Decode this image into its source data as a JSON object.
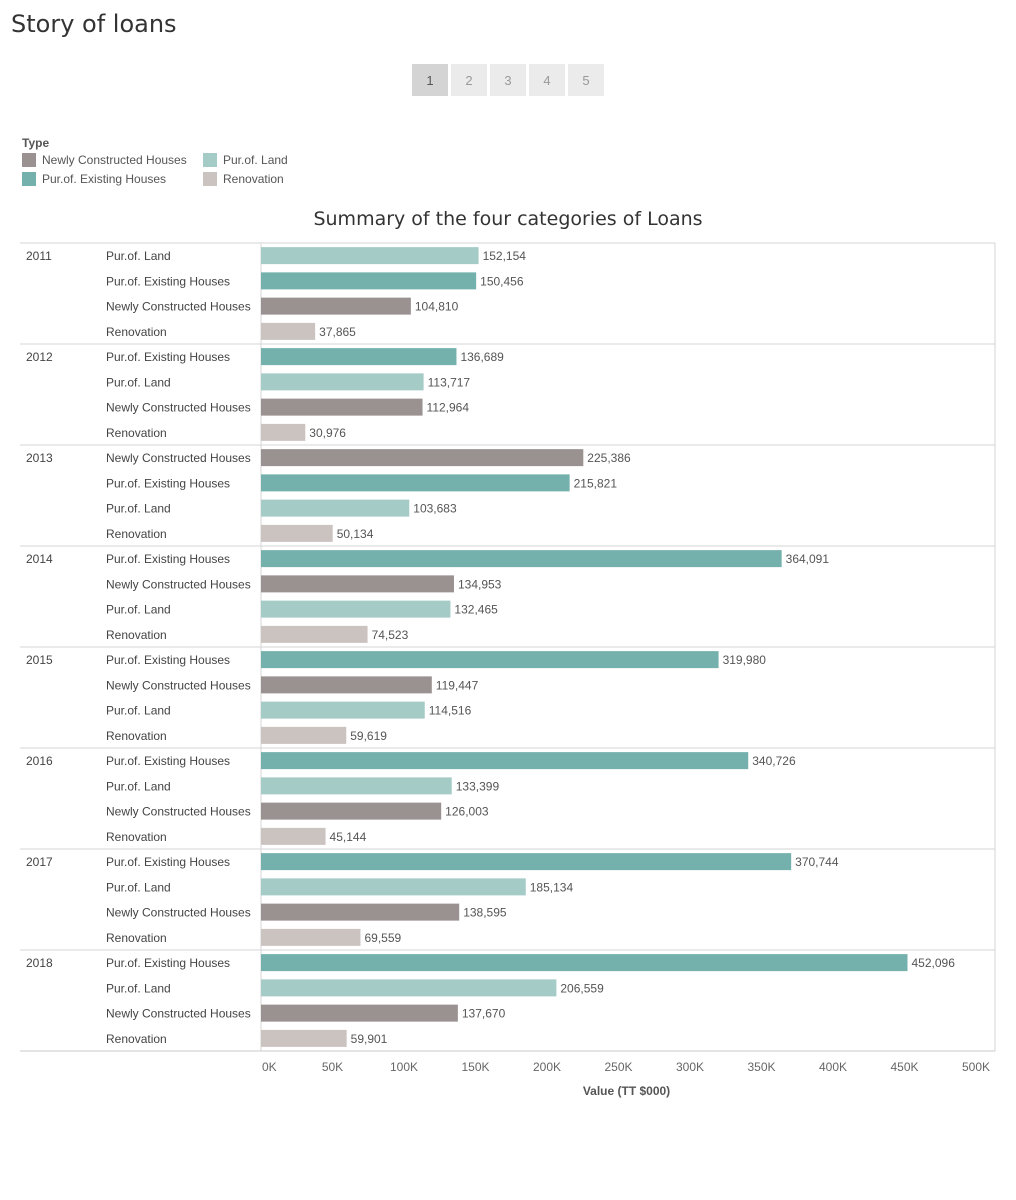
{
  "story": {
    "title": "Story of loans",
    "points": [
      "1",
      "2",
      "3",
      "4",
      "5"
    ],
    "active_index": 0
  },
  "legend": {
    "title": "Type",
    "items": [
      {
        "label": "Newly Constructed Houses",
        "color": "#9a9290"
      },
      {
        "label": "Pur.of. Land",
        "color": "#a5cbc7"
      },
      {
        "label": "Pur.of. Existing Houses",
        "color": "#74b1ac"
      },
      {
        "label": "Renovation",
        "color": "#cbc3c0"
      }
    ]
  },
  "chart_data": {
    "type": "bar",
    "orientation": "horizontal",
    "title": "Summary of the four categories of Loans",
    "xlabel": "Value (TT $000)",
    "xlim": [
      0,
      500000
    ],
    "xticks": [
      "0K",
      "50K",
      "100K",
      "150K",
      "200K",
      "250K",
      "300K",
      "350K",
      "400K",
      "450K",
      "500K"
    ],
    "groups": [
      {
        "year": "2011",
        "bars": [
          {
            "type": "Pur.of. Land",
            "value": 152154,
            "label": "152,154"
          },
          {
            "type": "Pur.of. Existing Houses",
            "value": 150456,
            "label": "150,456"
          },
          {
            "type": "Newly Constructed Houses",
            "value": 104810,
            "label": "104,810"
          },
          {
            "type": "Renovation",
            "value": 37865,
            "label": "37,865"
          }
        ]
      },
      {
        "year": "2012",
        "bars": [
          {
            "type": "Pur.of. Existing Houses",
            "value": 136689,
            "label": "136,689"
          },
          {
            "type": "Pur.of. Land",
            "value": 113717,
            "label": "113,717"
          },
          {
            "type": "Newly Constructed Houses",
            "value": 112964,
            "label": "112,964"
          },
          {
            "type": "Renovation",
            "value": 30976,
            "label": "30,976"
          }
        ]
      },
      {
        "year": "2013",
        "bars": [
          {
            "type": "Newly Constructed Houses",
            "value": 225386,
            "label": "225,386"
          },
          {
            "type": "Pur.of. Existing Houses",
            "value": 215821,
            "label": "215,821"
          },
          {
            "type": "Pur.of. Land",
            "value": 103683,
            "label": "103,683"
          },
          {
            "type": "Renovation",
            "value": 50134,
            "label": "50,134"
          }
        ]
      },
      {
        "year": "2014",
        "bars": [
          {
            "type": "Pur.of. Existing Houses",
            "value": 364091,
            "label": "364,091"
          },
          {
            "type": "Newly Constructed Houses",
            "value": 134953,
            "label": "134,953"
          },
          {
            "type": "Pur.of. Land",
            "value": 132465,
            "label": "132,465"
          },
          {
            "type": "Renovation",
            "value": 74523,
            "label": "74,523"
          }
        ]
      },
      {
        "year": "2015",
        "bars": [
          {
            "type": "Pur.of. Existing Houses",
            "value": 319980,
            "label": "319,980"
          },
          {
            "type": "Newly Constructed Houses",
            "value": 119447,
            "label": "119,447"
          },
          {
            "type": "Pur.of. Land",
            "value": 114516,
            "label": "114,516"
          },
          {
            "type": "Renovation",
            "value": 59619,
            "label": "59,619"
          }
        ]
      },
      {
        "year": "2016",
        "bars": [
          {
            "type": "Pur.of. Existing Houses",
            "value": 340726,
            "label": "340,726"
          },
          {
            "type": "Pur.of. Land",
            "value": 133399,
            "label": "133,399"
          },
          {
            "type": "Newly Constructed Houses",
            "value": 126003,
            "label": "126,003"
          },
          {
            "type": "Renovation",
            "value": 45144,
            "label": "45,144"
          }
        ]
      },
      {
        "year": "2017",
        "bars": [
          {
            "type": "Pur.of. Existing Houses",
            "value": 370744,
            "label": "370,744"
          },
          {
            "type": "Pur.of. Land",
            "value": 185134,
            "label": "185,134"
          },
          {
            "type": "Newly Constructed Houses",
            "value": 138595,
            "label": "138,595"
          },
          {
            "type": "Renovation",
            "value": 69559,
            "label": "69,559"
          }
        ]
      },
      {
        "year": "2018",
        "bars": [
          {
            "type": "Pur.of. Existing Houses",
            "value": 452096,
            "label": "452,096"
          },
          {
            "type": "Pur.of. Land",
            "value": 206559,
            "label": "206,559"
          },
          {
            "type": "Newly Constructed Houses",
            "value": 137670,
            "label": "137,670"
          },
          {
            "type": "Renovation",
            "value": 59901,
            "label": "59,901"
          }
        ]
      }
    ]
  }
}
